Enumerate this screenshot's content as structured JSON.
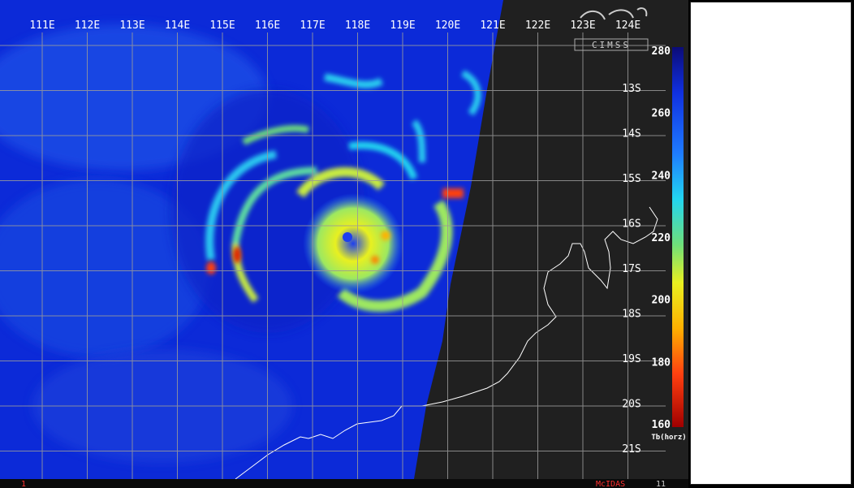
{
  "map": {
    "longitude_labels": [
      "111E",
      "112E",
      "113E",
      "114E",
      "115E",
      "116E",
      "117E",
      "118E",
      "119E",
      "120E",
      "121E",
      "122E",
      "123E",
      "124E"
    ],
    "latitude_labels": [
      "13S",
      "14S",
      "15S",
      "16S",
      "17S",
      "18S",
      "19S",
      "20S",
      "21S"
    ],
    "logo_text": "CIMSS",
    "footer_left": "1",
    "footer_brand": "McIDAS",
    "footer_right": "11"
  },
  "colorbar": {
    "tick_labels": [
      "280",
      "260",
      "240",
      "220",
      "200",
      "180",
      "160"
    ],
    "unit_label": "Tb(horz)",
    "colors": [
      "#0b0b78",
      "#1030e0",
      "#1e7bff",
      "#22d5f0",
      "#6fe07a",
      "#e8f020",
      "#ffb000",
      "#ff4010",
      "#a00000"
    ]
  },
  "colors": {
    "ocean_cold": "#0c1fd0",
    "land_background": "#202020",
    "grid": "#9a9a9a",
    "coast": "#ffffff"
  }
}
